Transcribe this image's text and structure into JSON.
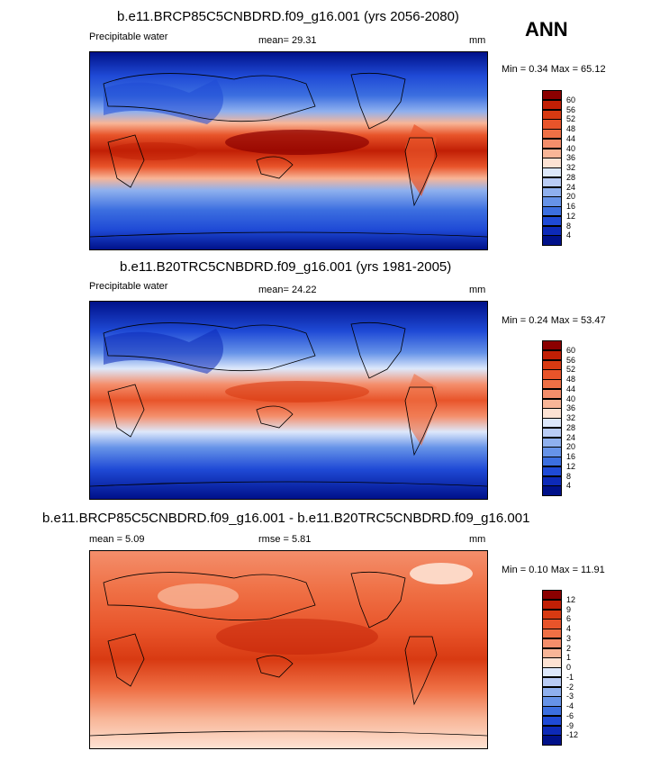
{
  "season": "ANN",
  "panels": [
    {
      "title": "b.e11.BRCP85C5CNBDRD.f09_g16.001 (yrs 2056-2080)",
      "left_label": "Precipitable water",
      "center_label": "mean=  29.31",
      "units": "mm",
      "minmax": "Min =   0.34 Max =  65.12",
      "legend": {
        "labels": [
          "60",
          "56",
          "52",
          "48",
          "44",
          "40",
          "36",
          "32",
          "28",
          "24",
          "20",
          "16",
          "12",
          "8",
          "4"
        ],
        "colors": [
          "#8b0000",
          "#c11f05",
          "#d83a12",
          "#e8542a",
          "#ef7045",
          "#f48e6b",
          "#f8b597",
          "#fde2d3",
          "#dde8fb",
          "#b9ccf5",
          "#8fb0ee",
          "#6693e8",
          "#3c6fe0",
          "#1f4ad6",
          "#0d2ab8",
          "#00118a"
        ]
      }
    },
    {
      "title": "b.e11.B20TRC5CNBDRD.f09_g16.001 (yrs 1981-2005)",
      "left_label": "Precipitable water",
      "center_label": "mean=  24.22",
      "units": "mm",
      "minmax": "Min =   0.24 Max =  53.47",
      "legend": {
        "labels": [
          "60",
          "56",
          "52",
          "48",
          "44",
          "40",
          "36",
          "32",
          "28",
          "24",
          "20",
          "16",
          "12",
          "8",
          "4"
        ],
        "colors": [
          "#8b0000",
          "#c11f05",
          "#d83a12",
          "#e8542a",
          "#ef7045",
          "#f48e6b",
          "#f8b597",
          "#fde2d3",
          "#dde8fb",
          "#b9ccf5",
          "#8fb0ee",
          "#6693e8",
          "#3c6fe0",
          "#1f4ad6",
          "#0d2ab8",
          "#00118a"
        ]
      }
    },
    {
      "title": "b.e11.BRCP85C5CNBDRD.f09_g16.001 - b.e11.B20TRC5CNBDRD.f09_g16.001",
      "left_label": "mean =   5.09",
      "center_label": "rmse =   5.81",
      "units": "mm",
      "minmax": "Min =   0.10 Max =  11.91",
      "legend": {
        "labels": [
          "12",
          "9",
          "6",
          "4",
          "3",
          "2",
          "1",
          "0",
          "-1",
          "-2",
          "-3",
          "-4",
          "-6",
          "-9",
          "-12"
        ],
        "colors": [
          "#8b0000",
          "#c11f05",
          "#d83a12",
          "#e8542a",
          "#ef7045",
          "#f48e6b",
          "#f8b597",
          "#fde2d3",
          "#dde8fb",
          "#b9ccf5",
          "#8fb0ee",
          "#6693e8",
          "#3c6fe0",
          "#1f4ad6",
          "#0d2ab8",
          "#00118a"
        ]
      }
    }
  ]
}
